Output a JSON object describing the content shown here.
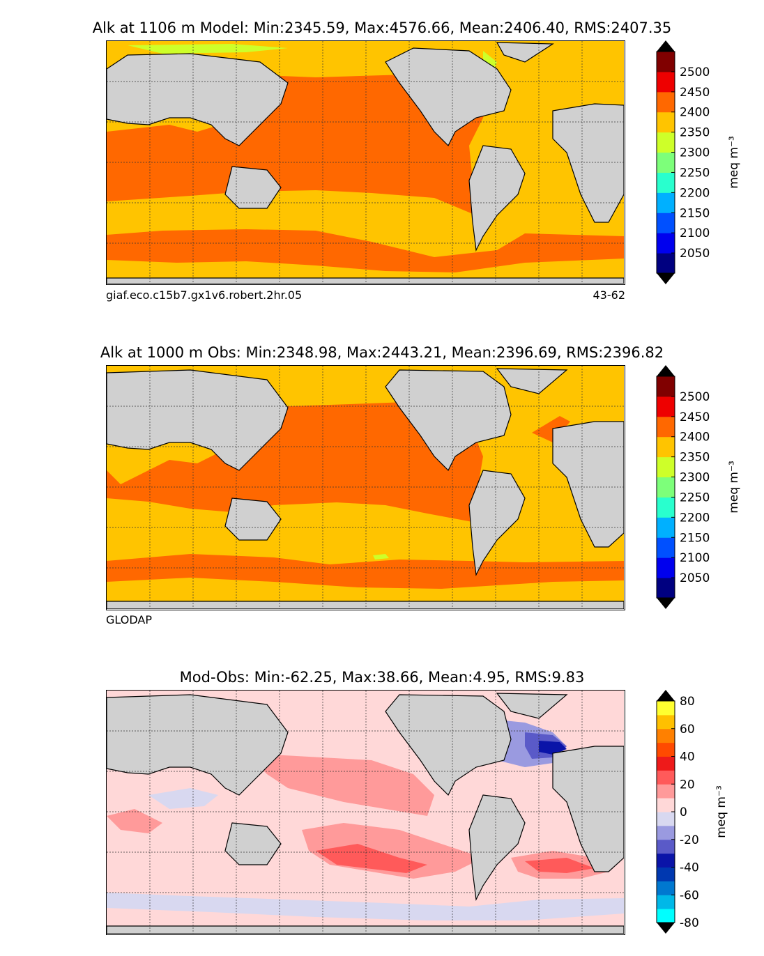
{
  "panels": [
    {
      "title": "Alk at 1106 m Model: Min:2345.59, Max:4576.66, Mean:2406.40, RMS:2407.35",
      "footer_left": "giaf.eco.c15b7.gx1v6.robert.2hr.05",
      "footer_right": "43-62",
      "colorbar": {
        "ticks": [
          "2500",
          "2450",
          "2400",
          "2350",
          "2300",
          "2250",
          "2200",
          "2150",
          "2100",
          "2050"
        ],
        "colors": [
          "#000080",
          "#0000ee",
          "#0050ff",
          "#00b0ff",
          "#29ffce",
          "#7dff7a",
          "#ceff29",
          "#ffc400",
          "#ff6800",
          "#ee0000",
          "#800000"
        ],
        "unit": "meq m⁻³"
      }
    },
    {
      "title": "Alk at 1000 m Obs: Min:2348.98, Max:2443.21, Mean:2396.69, RMS:2396.82",
      "footer_left": "GLODAP",
      "footer_right": "",
      "colorbar": {
        "ticks": [
          "2500",
          "2450",
          "2400",
          "2350",
          "2300",
          "2250",
          "2200",
          "2150",
          "2100",
          "2050"
        ],
        "colors": [
          "#000080",
          "#0000ee",
          "#0050ff",
          "#00b0ff",
          "#29ffce",
          "#7dff7a",
          "#ceff29",
          "#ffc400",
          "#ff6800",
          "#ee0000",
          "#800000"
        ],
        "unit": "meq m⁻³"
      }
    },
    {
      "title": "Mod-Obs: Min:-62.25, Max:38.66, Mean:4.95, RMS:9.83",
      "footer_left": "",
      "footer_right": "",
      "colorbar": {
        "ticks": [
          "80",
          "60",
          "40",
          "20",
          "0",
          "-20",
          "-40",
          "-60",
          "-80"
        ],
        "colors": [
          "#00ffff",
          "#00b8e8",
          "#0078d0",
          "#0038b0",
          "#0a14a8",
          "#5a5ac8",
          "#9a9ae0",
          "#d8d8f0",
          "#ffd8d8",
          "#ff9a9a",
          "#ff5a5a",
          "#ee1a1a",
          "#ff4a00",
          "#ff8000",
          "#ffc000",
          "#ffff30"
        ],
        "unit": "meq m⁻³"
      }
    }
  ],
  "chart_data": [
    {
      "type": "heatmap",
      "title": "Alk at 1106 m Model: Min:2345.59, Max:4576.66, Mean:2406.40, RMS:2407.35",
      "variable": "Alk",
      "depth_m": 1106,
      "stats": {
        "min": 2345.59,
        "max": 4576.66,
        "mean": 2406.4,
        "rms": 2407.35
      },
      "colorbar_range": [
        2000,
        2550
      ],
      "colorbar_step": 50,
      "colormap": "jet-like, extended both ends",
      "grid": true,
      "dominant_levels": {
        "pacific": "2400-2450",
        "indian": "2400-2450",
        "atlantic": "2350-2400",
        "southern_ocean_band": "2400-2450",
        "subtropical_south": "2350-2400"
      }
    },
    {
      "type": "heatmap",
      "title": "Alk at 1000 m Obs: Min:2348.98, Max:2443.21, Mean:2396.69, RMS:2396.82",
      "variable": "Alk",
      "depth_m": 1000,
      "stats": {
        "min": 2348.98,
        "max": 2443.21,
        "mean": 2396.69,
        "rms": 2396.82
      },
      "colorbar_range": [
        2000,
        2550
      ],
      "colorbar_step": 50,
      "grid": true,
      "dominant_levels": {
        "pacific": "2400-2450",
        "indian": "2400-2450",
        "atlantic": "2350-2400",
        "southern_ocean_band": "2400-2450",
        "subtropical_south": "2350-2400"
      }
    },
    {
      "type": "heatmap",
      "title": "Mod-Obs: Min:-62.25, Max:38.66, Mean:4.95, RMS:9.83",
      "variable": "Mod-Obs",
      "stats": {
        "min": -62.25,
        "max": 38.66,
        "mean": 4.95,
        "rms": 9.83
      },
      "colorbar_range": [
        -80,
        80
      ],
      "colorbar_step": 10,
      "grid": true
    }
  ]
}
